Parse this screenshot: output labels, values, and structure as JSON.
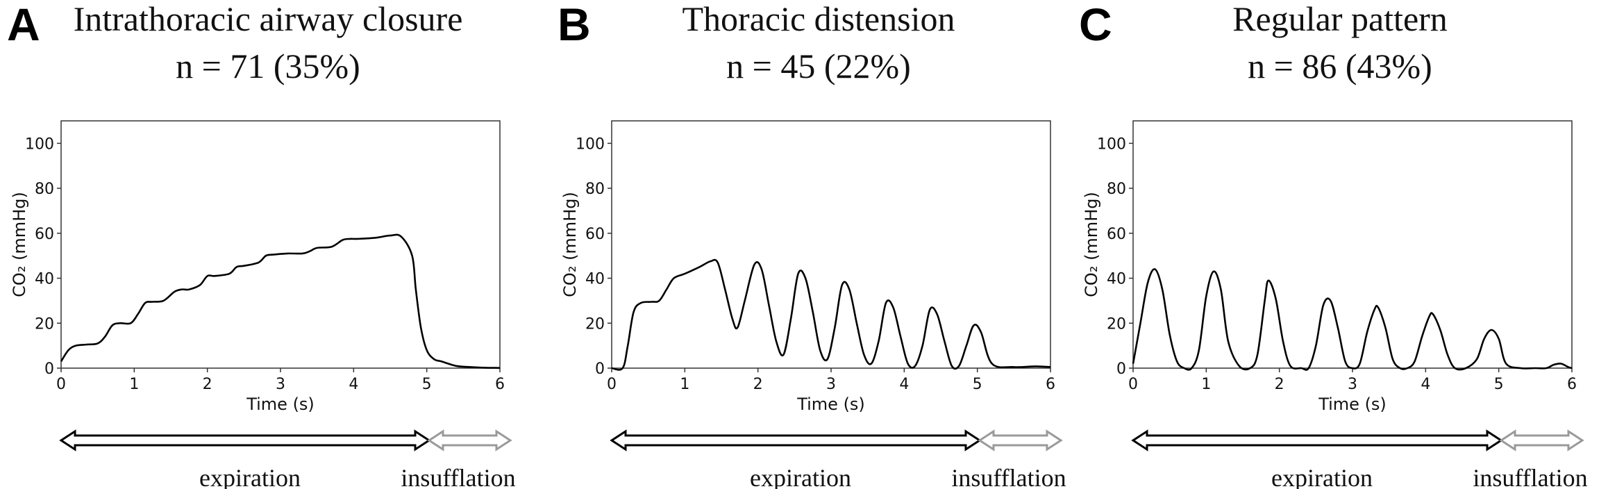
{
  "chart_data": [
    {
      "type": "line",
      "panel": "A",
      "title": "Intrathoracic airway closure",
      "subtitle": "n = 71 (35%)",
      "xlabel": "Time (s)",
      "ylabel": "CO₂ (mmHg)",
      "xlim": [
        0,
        6
      ],
      "ylim": [
        0,
        110
      ],
      "xticks": [
        "0",
        "1",
        "2",
        "3",
        "4",
        "5",
        "6"
      ],
      "yticks": [
        "0",
        "20",
        "40",
        "60",
        "80",
        "100"
      ],
      "series": [
        {
          "x": [
            0,
            0.1,
            0.2,
            0.35,
            0.5,
            0.6,
            0.7,
            0.8,
            0.95,
            1.05,
            1.15,
            1.25,
            1.4,
            1.55,
            1.65,
            1.75,
            1.9,
            2.0,
            2.1,
            2.3,
            2.4,
            2.5,
            2.7,
            2.8,
            2.9,
            3.1,
            3.3,
            3.4,
            3.5,
            3.7,
            3.85,
            3.95,
            4.05,
            4.3,
            4.5,
            4.65,
            4.8,
            4.85,
            4.92,
            5.0,
            5.1,
            5.2,
            5.4,
            5.6,
            5.8,
            6.0
          ],
          "values": [
            3,
            8,
            10,
            10.5,
            11,
            14,
            19,
            20,
            20,
            24,
            29,
            29.5,
            30,
            34,
            35,
            35,
            37,
            41,
            41,
            42,
            45,
            45.5,
            47,
            50,
            50.5,
            51,
            51,
            52,
            53.5,
            54,
            57,
            57.5,
            57.5,
            58,
            59,
            58.5,
            50,
            35,
            18,
            8,
            4,
            3,
            1,
            0.5,
            0.2,
            0.1
          ]
        }
      ],
      "phases": [
        "expiration",
        "insufflation"
      ]
    },
    {
      "type": "line",
      "panel": "B",
      "title": "Thoracic distension",
      "subtitle": "n = 45 (22%)",
      "xlabel": "Time (s)",
      "ylabel": "CO₂ (mmHg)",
      "xlim": [
        0,
        6
      ],
      "ylim": [
        0,
        110
      ],
      "xticks": [
        "0",
        "1",
        "2",
        "3",
        "4",
        "5",
        "6"
      ],
      "yticks": [
        "0",
        "20",
        "40",
        "60",
        "80",
        "100"
      ],
      "series": [
        {
          "x": [
            0,
            0.15,
            0.22,
            0.3,
            0.4,
            0.55,
            0.65,
            0.75,
            0.85,
            1.0,
            1.2,
            1.35,
            1.45,
            1.55,
            1.65,
            1.72,
            1.82,
            1.95,
            2.05,
            2.15,
            2.25,
            2.35,
            2.45,
            2.55,
            2.65,
            2.75,
            2.85,
            2.95,
            3.05,
            3.15,
            3.25,
            3.35,
            3.45,
            3.55,
            3.65,
            3.75,
            3.85,
            3.95,
            4.05,
            4.15,
            4.25,
            4.35,
            4.45,
            4.55,
            4.65,
            4.75,
            4.85,
            4.95,
            5.05,
            5.2,
            5.5,
            5.8,
            6.0
          ],
          "values": [
            0,
            0,
            10,
            25,
            29,
            29.5,
            30,
            35,
            40,
            42,
            45,
            47.5,
            47,
            35,
            22,
            18,
            30,
            46,
            44,
            28,
            12,
            6,
            22,
            42,
            40,
            25,
            8,
            4,
            18,
            37,
            35,
            20,
            6,
            2,
            12,
            29,
            27,
            14,
            2,
            1,
            10,
            26,
            24,
            12,
            1,
            1,
            10,
            19,
            16,
            2,
            0.5,
            0.8,
            0.5
          ]
        }
      ],
      "phases": [
        "expiration",
        "insufflation"
      ]
    },
    {
      "type": "line",
      "panel": "C",
      "title": "Regular pattern",
      "subtitle": "n = 86 (43%)",
      "xlabel": "Time (s)",
      "ylabel": "CO₂ (mmHg)",
      "xlim": [
        0,
        6
      ],
      "ylim": [
        0,
        110
      ],
      "xticks": [
        "0",
        "1",
        "2",
        "3",
        "4",
        "5",
        "6"
      ],
      "yticks": [
        "0",
        "20",
        "40",
        "60",
        "80",
        "100"
      ],
      "series": [
        {
          "x": [
            0,
            0.1,
            0.2,
            0.3,
            0.4,
            0.5,
            0.6,
            0.7,
            0.8,
            0.9,
            1.0,
            1.1,
            1.2,
            1.3,
            1.45,
            1.6,
            1.7,
            1.8,
            1.85,
            1.95,
            2.05,
            2.15,
            2.3,
            2.4,
            2.5,
            2.6,
            2.7,
            2.8,
            2.9,
            3.0,
            3.1,
            3.2,
            3.3,
            3.35,
            3.45,
            3.55,
            3.65,
            3.75,
            3.85,
            3.95,
            4.05,
            4.1,
            4.2,
            4.3,
            4.4,
            4.55,
            4.7,
            4.8,
            4.9,
            5.0,
            5.1,
            5.3,
            5.5,
            5.65,
            5.75,
            5.85,
            5.95,
            6.0
          ],
          "values": [
            2,
            20,
            38,
            44,
            35,
            15,
            3,
            0,
            0,
            8,
            32,
            43,
            35,
            12,
            1,
            0,
            6,
            30,
            39,
            31,
            12,
            1,
            0,
            0,
            10,
            28,
            30,
            18,
            3,
            0,
            2,
            16,
            26,
            27,
            18,
            4,
            0,
            0,
            3,
            14,
            23,
            24,
            17,
            6,
            0,
            0,
            4,
            13,
            17,
            13,
            2,
            0,
            0,
            0,
            1.5,
            2,
            0.5,
            0
          ]
        }
      ],
      "phases": [
        "expiration",
        "insufflation"
      ]
    }
  ]
}
